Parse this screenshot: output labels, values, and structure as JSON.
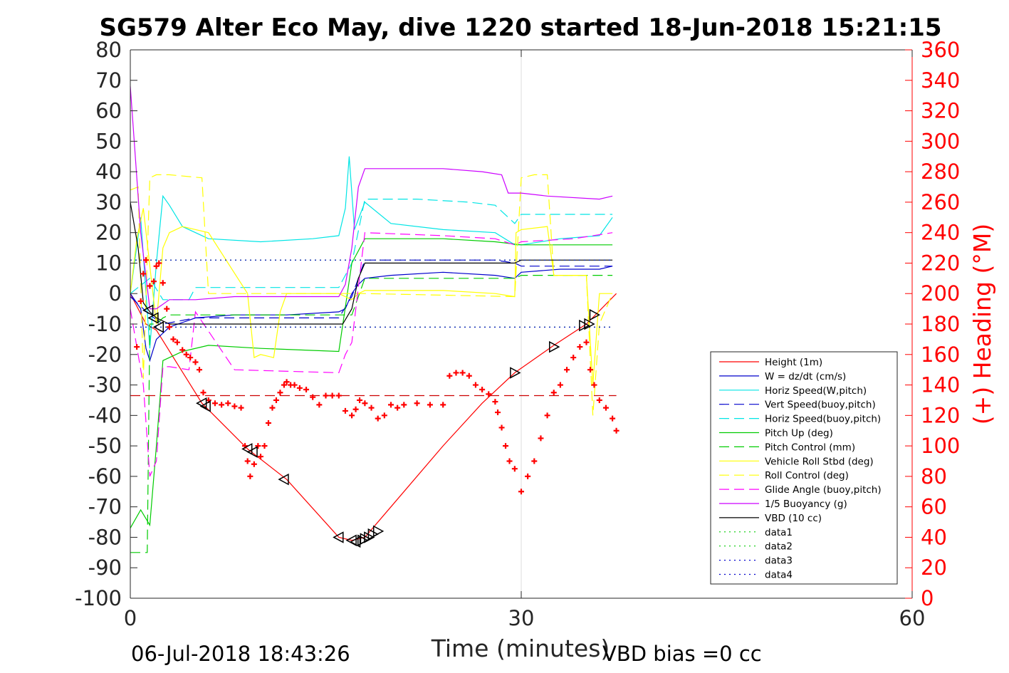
{
  "chart_data": {
    "type": "line",
    "title": "SG579 Alter Eco May, dive 1220 started 18-Jun-2018 15:21:15",
    "xlabel": "Time (minutes)",
    "y2label": "(+) Heading (°M)",
    "xlim": [
      0,
      60
    ],
    "ylim": [
      -100,
      80
    ],
    "y2lim": [
      0,
      360
    ],
    "xticks": [
      "0",
      "30",
      "60"
    ],
    "yticks": [
      "80",
      "70",
      "60",
      "50",
      "40",
      "30",
      "20",
      "10",
      "0",
      "-10",
      "-20",
      "-30",
      "-40",
      "-50",
      "-60",
      "-70",
      "-80",
      "-90",
      "-100"
    ],
    "y2ticks": [
      "360",
      "340",
      "320",
      "300",
      "280",
      "260",
      "240",
      "220",
      "200",
      "180",
      "160",
      "140",
      "120",
      "100",
      "80",
      "60",
      "40",
      "20",
      "0"
    ],
    "grid": "x-only at 30",
    "legend_position": "lower-right",
    "footer_left": "06-Jul-2018 18:43:26",
    "footer_right": "VBD bias =0 cc",
    "colors": {
      "heading": "#ff0000",
      "axis_right": "#ff0000"
    },
    "series": [
      {
        "name": "Height (1m)",
        "color": "#ff0000",
        "style": "solid",
        "x": [
          0,
          1.2,
          2,
          5.5,
          9,
          12,
          16,
          17,
          18,
          20,
          24,
          27,
          29.5,
          32.5,
          35,
          37.3
        ],
        "y": [
          0,
          -10,
          -12,
          -36,
          -51,
          -61,
          -80,
          -81,
          -80,
          -70,
          -50,
          -36,
          -26,
          -17,
          -10,
          0
        ]
      },
      {
        "name": "W = dz/dt (cm/s)",
        "color": "#0000cc",
        "style": "solid",
        "x": [
          0,
          0.8,
          1.2,
          1.5,
          2,
          3,
          5,
          8,
          12,
          16,
          16.5,
          17,
          17.5,
          18,
          20,
          24,
          28,
          29.5,
          30,
          33,
          36,
          37
        ],
        "y": [
          0,
          -5,
          -18,
          -22,
          -15,
          -11,
          -8,
          -7,
          -7,
          -6,
          -5,
          0,
          3,
          5,
          6,
          7,
          6,
          5,
          7,
          8,
          8,
          9
        ]
      },
      {
        "name": "Horiz Speed(W,pitch)",
        "color": "#00e5e5",
        "style": "solid",
        "x": [
          0,
          0.8,
          1.5,
          2,
          2.5,
          3,
          4,
          6,
          10,
          14,
          16,
          16.5,
          16.8,
          17.2,
          18,
          20,
          24,
          28,
          29.5,
          30,
          33,
          36,
          37
        ],
        "y": [
          0,
          25,
          -18,
          10,
          32,
          29,
          22,
          18,
          17,
          18,
          19,
          28,
          45,
          21,
          30,
          23,
          21,
          20,
          16,
          16,
          18,
          19,
          25
        ]
      },
      {
        "name": "Vert Speed(buoy,pitch)",
        "color": "#0000cc",
        "style": "dash",
        "x": [
          0,
          1.5,
          2.5,
          5,
          16,
          17,
          18,
          24,
          28,
          29.5,
          30,
          34,
          37
        ],
        "y": [
          -1,
          -7,
          -10,
          -8,
          -8,
          -1,
          11,
          11,
          11,
          10,
          9,
          9,
          9
        ]
      },
      {
        "name": "Horiz Speed(buoy,pitch)",
        "color": "#00e5e5",
        "style": "dash",
        "x": [
          0,
          1.5,
          2.5,
          4.5,
          5,
          8,
          16,
          17,
          18,
          22,
          26,
          28,
          29.5,
          30,
          34,
          37
        ],
        "y": [
          0,
          5,
          -2,
          -2,
          2,
          2,
          2,
          10,
          31,
          31,
          30,
          29,
          23,
          26,
          26,
          26
        ]
      },
      {
        "name": "Pitch Up (deg)",
        "color": "#00cc00",
        "style": "solid",
        "x": [
          0,
          0.8,
          1.5,
          2,
          2.5,
          4,
          6,
          10,
          16,
          17,
          18,
          24,
          28,
          30,
          34,
          37
        ],
        "y": [
          -77,
          -71,
          -76,
          -50,
          -22,
          -19,
          -17,
          -18,
          -19,
          10,
          18,
          18,
          17,
          16,
          16,
          16
        ]
      },
      {
        "name": "Pitch Control (mm)",
        "color": "#00cc00",
        "style": "dash",
        "x": [
          0,
          1.3,
          1.5,
          2,
          2.5,
          3,
          16,
          17,
          18,
          29.5,
          30,
          37
        ],
        "y": [
          -85,
          -85,
          -10,
          -10,
          -8,
          -7,
          -7,
          -7,
          5,
          5,
          6,
          6
        ]
      },
      {
        "name": "Vehicle Roll Stbd (deg)",
        "color": "#ffff00",
        "style": "solid",
        "x": [
          0,
          0.5,
          1,
          2,
          2.5,
          3,
          4,
          6,
          9,
          9.5,
          10,
          11,
          11.5,
          12,
          16,
          17,
          17.5,
          18,
          20,
          24,
          28,
          29.5,
          29.6,
          30,
          32,
          32.5,
          35,
          35.5,
          36,
          37
        ],
        "y": [
          0,
          18,
          28,
          -10,
          15,
          20,
          22,
          20,
          0,
          -21,
          -20,
          -21,
          -6,
          0,
          0,
          -2,
          0,
          1,
          1,
          1,
          0,
          -1,
          20,
          21,
          22,
          6,
          6,
          -30,
          0,
          0
        ]
      },
      {
        "name": "Roll Control (deg)",
        "color": "#ffff00",
        "style": "dash",
        "x": [
          0,
          0.6,
          1,
          1.5,
          2,
          3,
          5.5,
          6,
          6.5,
          16,
          16.5,
          17,
          18,
          29.5,
          30,
          31,
          32,
          32.5,
          35,
          35.5,
          36,
          37
        ],
        "y": [
          34,
          35,
          -28,
          38,
          39,
          39,
          38,
          0,
          0,
          0,
          0,
          0,
          0,
          -1,
          38,
          39,
          39,
          6,
          6,
          -40,
          -10,
          0
        ]
      },
      {
        "name": "Glide Angle (buoy,pitch)",
        "color": "#ff00ff",
        "style": "dash",
        "x": [
          0,
          1,
          1.5,
          2,
          2.5,
          3,
          4.5,
          5,
          8,
          16,
          16.5,
          17,
          18,
          24,
          28,
          29.5,
          30,
          34,
          37
        ],
        "y": [
          -5,
          -30,
          -60,
          -55,
          -24,
          -24,
          -25,
          -6,
          -25,
          -26,
          -20,
          -16,
          20,
          19,
          18,
          16,
          17,
          18,
          20
        ]
      },
      {
        "name": "1/5 Buoyancy (g)",
        "color": "#cc00ff",
        "style": "solid",
        "x": [
          0,
          0.3,
          0.8,
          1.5,
          2,
          3,
          4.5,
          5,
          8,
          12,
          16,
          16.5,
          17,
          17.5,
          18,
          19,
          24,
          27,
          28.5,
          29,
          30,
          32,
          36,
          37
        ],
        "y": [
          68,
          50,
          20,
          -5,
          -5,
          -2,
          -2,
          -2,
          -1,
          -1,
          -1,
          3,
          15,
          35,
          41,
          41,
          41,
          40,
          39,
          33,
          33,
          32,
          31,
          32
        ]
      },
      {
        "name": "VBD (10 cc)",
        "color": "#000000",
        "style": "solid",
        "x": [
          0,
          0.6,
          1,
          1.5,
          2,
          3,
          16,
          16.3,
          17,
          17.5,
          18,
          24,
          28,
          29.5,
          30,
          37
        ],
        "y": [
          30,
          15,
          -3,
          -6,
          -8,
          -10,
          -10,
          -10,
          -5,
          5,
          10,
          10,
          10,
          10,
          11,
          11
        ]
      },
      {
        "name": "data1",
        "color": "#00cc00",
        "style": "dot",
        "x": [
          0,
          37
        ],
        "y": [
          11,
          11
        ]
      },
      {
        "name": "data2",
        "color": "#00cc00",
        "style": "dot",
        "x": [
          0,
          37
        ],
        "y": [
          -11,
          -11
        ]
      },
      {
        "name": "data3",
        "color": "#0000cc",
        "style": "dot",
        "x": [
          0,
          37
        ],
        "y": [
          11,
          11
        ]
      },
      {
        "name": "data4",
        "color": "#0000cc",
        "style": "dot",
        "x": [
          0,
          37
        ],
        "y": [
          -11,
          -11
        ]
      }
    ],
    "reference_line": {
      "y": -33.5,
      "color": "#cc0000",
      "style": "dash",
      "x": [
        0,
        37.3
      ]
    },
    "heading_points": {
      "axis": "right",
      "x": [
        0.5,
        0.8,
        1.0,
        1.2,
        1.5,
        1.8,
        2.0,
        2.2,
        2.5,
        2.8,
        3.0,
        3.3,
        3.6,
        4.0,
        4.3,
        4.6,
        5.0,
        5.3,
        5.6,
        6.0,
        6.5,
        7,
        7.5,
        8,
        8.5,
        8.8,
        9.0,
        9.2,
        9.5,
        9.8,
        10,
        10.3,
        10.6,
        10.9,
        11.2,
        11.5,
        11.8,
        12,
        12.3,
        12.6,
        13,
        13.5,
        14,
        14.5,
        15,
        15.5,
        16,
        16.5,
        17,
        17.3,
        17.6,
        18,
        18.5,
        19,
        19.5,
        20,
        20.5,
        21,
        22,
        23,
        24,
        24.5,
        25,
        25.5,
        26,
        26.5,
        27,
        27.5,
        28,
        28.2,
        28.5,
        28.8,
        29.1,
        29.5,
        30,
        30.5,
        31,
        31.5,
        32,
        32.5,
        33,
        33.5,
        34,
        34.5,
        35,
        35.3,
        35.6,
        36,
        36.5,
        37,
        37.3
      ],
      "y": [
        165,
        195,
        213,
        222,
        205,
        208,
        218,
        220,
        207,
        190,
        178,
        170,
        168,
        163,
        160,
        158,
        155,
        150,
        135,
        130,
        128,
        127,
        128,
        126,
        125,
        100,
        90,
        80,
        88,
        100,
        93,
        100,
        115,
        125,
        130,
        135,
        140,
        142,
        140,
        140,
        138,
        137,
        132,
        127,
        133,
        133,
        133,
        123,
        120,
        124,
        130,
        128,
        125,
        118,
        120,
        127,
        125,
        127,
        128,
        127,
        127,
        146,
        148,
        148,
        146,
        140,
        137,
        134,
        129,
        122,
        112,
        100,
        90,
        85,
        70,
        80,
        90,
        105,
        120,
        135,
        140,
        150,
        158,
        165,
        168,
        150,
        140,
        130,
        125,
        118,
        110
      ]
    },
    "direction_markers": {
      "down": {
        "x": [
          1.4,
          1.8,
          2.2,
          5.5,
          5.8,
          9,
          9.4,
          11.8,
          16,
          17,
          17.3
        ],
        "y": [
          -5.5,
          -8,
          -11,
          -36,
          -37,
          -51,
          -52,
          -61,
          -80,
          -81,
          -81.5
        ]
      },
      "up": {
        "x": [
          17.8,
          18,
          18.3,
          18.6,
          19,
          29.5,
          32.5,
          34.8,
          35.2,
          35.6
        ],
        "y": [
          -81,
          -80.5,
          -80,
          -79,
          -78,
          -26,
          -17.5,
          -10.5,
          -10,
          -7
        ]
      }
    },
    "legend_entries": [
      "Height (1m)",
      "W = dz/dt (cm/s)",
      "Horiz Speed(W,pitch)",
      "Vert Speed(buoy,pitch)",
      "Horiz Speed(buoy,pitch)",
      "Pitch Up (deg)",
      "Pitch Control (mm)",
      "Vehicle Roll Stbd (deg)",
      "Roll Control (deg)",
      "Glide Angle (buoy,pitch)",
      "1/5 Buoyancy (g)",
      "VBD (10 cc)",
      "data1",
      "data2",
      "data3",
      "data4"
    ]
  }
}
